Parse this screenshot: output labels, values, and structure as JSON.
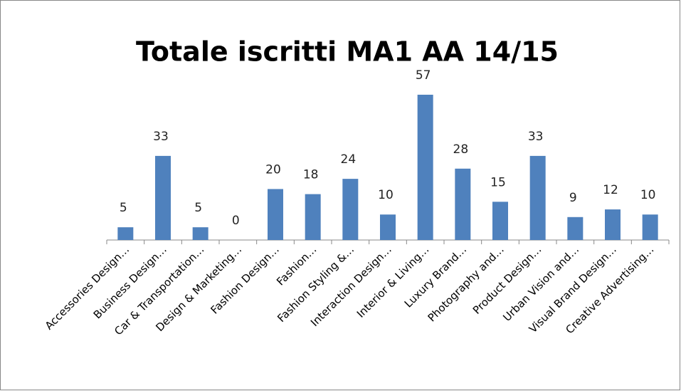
{
  "chart_data": {
    "type": "bar",
    "title": "Totale iscritti MA1 AA 14/15",
    "categories": [
      "Accessories Design…",
      "Business Design…",
      "Car & Transportation…",
      "Design & Marketing…",
      "Fashion Design…",
      "Fashion…",
      "Fashion Styling &…",
      "Interaction Design…",
      "Interior & Living…",
      "Luxury Brand…",
      "Photography and…",
      "Product Design…",
      "Urban Vision and…",
      "Visual Brand Design…",
      "Creative Advertising…"
    ],
    "values": [
      5,
      33,
      5,
      0,
      20,
      18,
      24,
      10,
      57,
      28,
      15,
      33,
      9,
      12,
      10
    ],
    "color": "#4f81bd",
    "grid": false
  }
}
